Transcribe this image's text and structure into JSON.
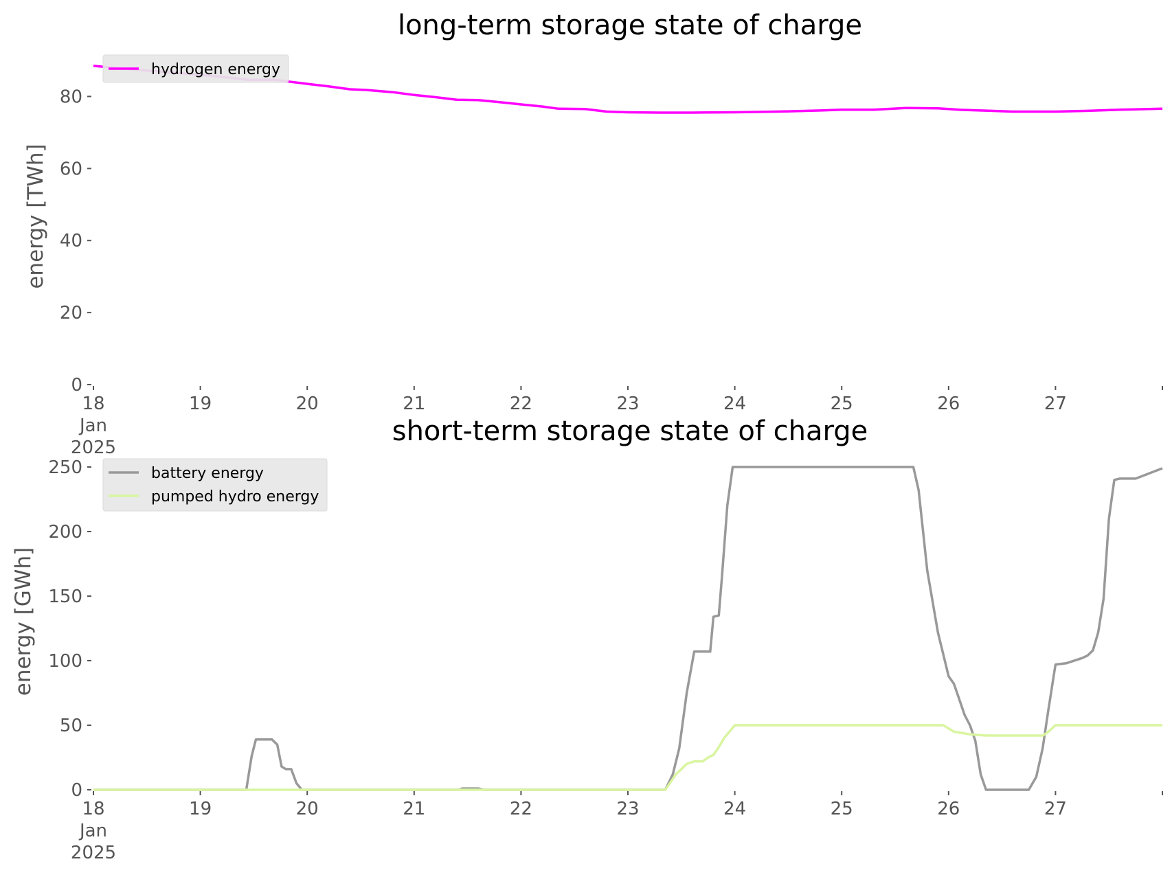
{
  "chart_data": [
    {
      "type": "line",
      "title": "long-term storage state of charge",
      "ylabel": "energy [TWh]",
      "ylim": [
        0,
        90
      ],
      "yticks": [
        0,
        20,
        40,
        60,
        80
      ],
      "xlim": [
        18,
        28
      ],
      "xticks": [
        {
          "x": 18,
          "label": "18",
          "sub": [
            "Jan",
            "2025"
          ]
        },
        {
          "x": 19,
          "label": "19"
        },
        {
          "x": 20,
          "label": "20"
        },
        {
          "x": 21,
          "label": "21"
        },
        {
          "x": 22,
          "label": "22"
        },
        {
          "x": 23,
          "label": "23"
        },
        {
          "x": 24,
          "label": "24"
        },
        {
          "x": 25,
          "label": "25"
        },
        {
          "x": 26,
          "label": "26"
        },
        {
          "x": 27,
          "label": "27"
        }
      ],
      "grid": false,
      "legend": "top-left",
      "series": [
        {
          "name": "hydrogen energy",
          "color": "#ff00ff",
          "x": [
            18.0,
            18.25,
            18.5,
            18.75,
            19.0,
            19.25,
            19.45,
            19.7,
            20.0,
            20.2,
            20.4,
            20.55,
            20.8,
            21.0,
            21.2,
            21.4,
            21.6,
            21.8,
            22.0,
            22.2,
            22.35,
            22.6,
            22.8,
            23.0,
            23.3,
            23.6,
            24.0,
            24.4,
            24.8,
            25.0,
            25.3,
            25.6,
            25.9,
            26.1,
            26.4,
            26.6,
            26.8,
            27.0,
            27.3,
            27.6,
            28.0
          ],
          "y": [
            88.5,
            87.8,
            87.2,
            86.6,
            86.0,
            85.3,
            84.6,
            84.6,
            83.5,
            82.8,
            82.0,
            81.8,
            81.2,
            80.4,
            79.8,
            79.1,
            79.0,
            78.4,
            77.8,
            77.2,
            76.6,
            76.5,
            75.8,
            75.6,
            75.5,
            75.5,
            75.6,
            75.8,
            76.1,
            76.3,
            76.3,
            76.8,
            76.7,
            76.3,
            76.0,
            75.8,
            75.8,
            75.8,
            76.0,
            76.3,
            76.6
          ]
        }
      ]
    },
    {
      "type": "line",
      "title": "short-term storage state of charge",
      "ylabel": "energy [GWh]",
      "ylim": [
        0,
        250
      ],
      "yticks": [
        0,
        50,
        100,
        150,
        200,
        250
      ],
      "xlim": [
        18,
        28
      ],
      "xticks": [
        {
          "x": 18,
          "label": "18",
          "sub": [
            "Jan",
            "2025"
          ]
        },
        {
          "x": 19,
          "label": "19"
        },
        {
          "x": 20,
          "label": "20"
        },
        {
          "x": 21,
          "label": "21"
        },
        {
          "x": 22,
          "label": "22"
        },
        {
          "x": 23,
          "label": "23"
        },
        {
          "x": 24,
          "label": "24"
        },
        {
          "x": 25,
          "label": "25"
        },
        {
          "x": 26,
          "label": "26"
        },
        {
          "x": 27,
          "label": "27"
        }
      ],
      "grid": false,
      "legend": "top-left",
      "series": [
        {
          "name": "battery energy",
          "color": "#999999",
          "x": [
            18.0,
            19.43,
            19.48,
            19.52,
            19.67,
            19.72,
            19.76,
            19.8,
            19.85,
            19.9,
            19.95,
            21.0,
            21.42,
            21.45,
            21.6,
            21.65,
            23.0,
            23.35,
            23.42,
            23.48,
            23.55,
            23.62,
            23.7,
            23.77,
            23.8,
            23.85,
            23.88,
            23.93,
            23.98,
            24.5,
            25.0,
            25.5,
            25.67,
            25.72,
            25.8,
            25.9,
            26.0,
            26.05,
            26.1,
            26.15,
            26.2,
            26.25,
            26.3,
            26.35,
            26.5,
            26.6,
            26.75,
            26.82,
            26.88,
            26.93,
            27.0,
            27.1,
            27.25,
            27.3,
            27.35,
            27.4,
            27.45,
            27.5,
            27.55,
            27.6,
            27.75,
            28.0
          ],
          "y": [
            0,
            0,
            26,
            39,
            39,
            35,
            18,
            16,
            16,
            5,
            0,
            0,
            0,
            1,
            1,
            0,
            0,
            0,
            12,
            32,
            75,
            107,
            107,
            107,
            134,
            135,
            165,
            220,
            250,
            250,
            250,
            250,
            250,
            232,
            170,
            122,
            88,
            82,
            70,
            58,
            50,
            38,
            12,
            0,
            0,
            0,
            0,
            10,
            32,
            60,
            97,
            98,
            102,
            104,
            108,
            122,
            148,
            210,
            240,
            241,
            241,
            249
          ]
        },
        {
          "name": "pumped hydro energy",
          "color": "#d9f5a0",
          "x": [
            18.0,
            23.35,
            23.45,
            23.55,
            23.62,
            23.7,
            23.75,
            23.8,
            23.85,
            23.9,
            24.0,
            24.5,
            25.0,
            25.5,
            25.95,
            26.05,
            26.2,
            26.35,
            26.5,
            26.7,
            26.88,
            26.92,
            27.0,
            27.5,
            28.0
          ],
          "y": [
            0,
            0,
            12,
            20,
            22,
            22,
            25,
            27,
            33,
            40,
            50,
            50,
            50,
            50,
            50,
            45,
            43,
            42,
            42,
            42,
            42,
            44,
            50,
            50,
            50
          ]
        }
      ]
    }
  ]
}
